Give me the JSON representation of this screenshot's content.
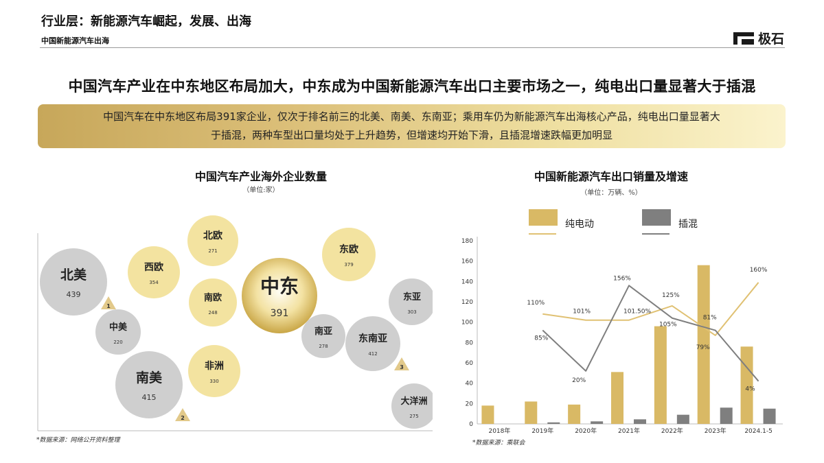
{
  "header": {
    "title": "行业层：新能源汽车崛起，发展、出海",
    "subtitle": "中国新能源汽车出海",
    "logo_text": "极石"
  },
  "main_title": "中国汽车产业在中东地区布局加大，中东成为中国新能源汽车出口主要市场之一，纯电出口量显著大于插混",
  "summary": {
    "line1": "中国汽车在中东地区布局391家企业，仅次于排名前三的北美、南美、东南亚；乘用车仍为新能源汽车出海核心产品，纯电出口量显著大",
    "line2": "于插混，两种车型出口量均处于上升趋势，但增速均开始下滑，且插混增速跌幅更加明显"
  },
  "left_chart": {
    "title": "中国汽车产业海外企业数量",
    "unit": "（单位:家）",
    "source": "*数据来源：网络公开资料整理"
  },
  "right_chart": {
    "title": "中国新能源汽车出口销量及增速",
    "unit": "（单位：万辆、%）",
    "source": "*数据来源：乘联会"
  },
  "chart_data": [
    {
      "type": "bubble",
      "title": "中国汽车产业海外企业数量",
      "unit": "（单位:家）",
      "colors": {
        "gold": "#f3e3a0",
        "grey": "#cfcfcf",
        "highlight": "#c9a646",
        "badge": "#e2c98a"
      },
      "bubbles": [
        {
          "name": "北美",
          "value": 439,
          "rank": "1",
          "color": "grey"
        },
        {
          "name": "南美",
          "value": 415,
          "rank": "2",
          "color": "grey"
        },
        {
          "name": "东南亚",
          "value": 412,
          "rank": "3",
          "color": "grey"
        },
        {
          "name": "中东",
          "value": 391,
          "color": "highlight"
        },
        {
          "name": "东欧",
          "value": 379,
          "color": "gold"
        },
        {
          "name": "西欧",
          "value": 354,
          "color": "gold"
        },
        {
          "name": "非洲",
          "value": 330,
          "color": "gold"
        },
        {
          "name": "东亚",
          "value": 303,
          "color": "grey"
        },
        {
          "name": "南亚",
          "value": 278,
          "color": "grey"
        },
        {
          "name": "大洋洲",
          "value": 275,
          "color": "grey"
        },
        {
          "name": "北欧",
          "value": 271,
          "color": "gold"
        },
        {
          "name": "南欧",
          "value": 248,
          "color": "gold"
        },
        {
          "name": "中美",
          "value": 220,
          "color": "grey"
        }
      ]
    },
    {
      "type": "bar+line",
      "title": "中国新能源汽车出口销量及增速",
      "unit": "（单位：万辆、%）",
      "categories": [
        "2018年",
        "2019年",
        "2020年",
        "2021年",
        "2022年",
        "2023年",
        "2024.1-5"
      ],
      "ylim": [
        0,
        180
      ],
      "yticks": [
        0,
        20,
        40,
        60,
        80,
        100,
        120,
        140,
        160,
        180
      ],
      "colors": {
        "bev": "#d9b965",
        "phev": "#7f7f7f",
        "bev_line": "#e0c173",
        "phev_line": "#7f7f7f"
      },
      "series": [
        {
          "name": "纯电动",
          "kind": "bar",
          "values": [
            18,
            22,
            19,
            51,
            96,
            156,
            76
          ]
        },
        {
          "name": "插混",
          "kind": "bar",
          "values": [
            0,
            1.5,
            2.5,
            4.5,
            9,
            16,
            15
          ]
        }
      ],
      "growth_lines": [
        {
          "series": "纯电动",
          "points": [
            {
              "category": "2019年",
              "value": 108,
              "label": "110%"
            },
            {
              "category": "2020年",
              "value": 102,
              "label": "101%"
            },
            {
              "category": "2021年",
              "value": 102,
              "label": "101.50%"
            },
            {
              "category": "2022年",
              "value": 116,
              "label": "125%"
            },
            {
              "category": "2023年",
              "value": 87,
              "label": "79%"
            },
            {
              "category": "2024.1-5",
              "value": 139,
              "label": "160%"
            }
          ]
        },
        {
          "series": "插混",
          "points": [
            {
              "category": "2019年",
              "value": 92,
              "label": "85%"
            },
            {
              "category": "2020年",
              "value": 52,
              "label": "20%"
            },
            {
              "category": "2021年",
              "value": 136,
              "label": "156%"
            },
            {
              "category": "2022年",
              "value": 104,
              "label": "105%"
            },
            {
              "category": "2023年",
              "value": 92,
              "label": "81%"
            },
            {
              "category": "2024.1-5",
              "value": 42,
              "label": "4%"
            }
          ]
        }
      ]
    }
  ]
}
